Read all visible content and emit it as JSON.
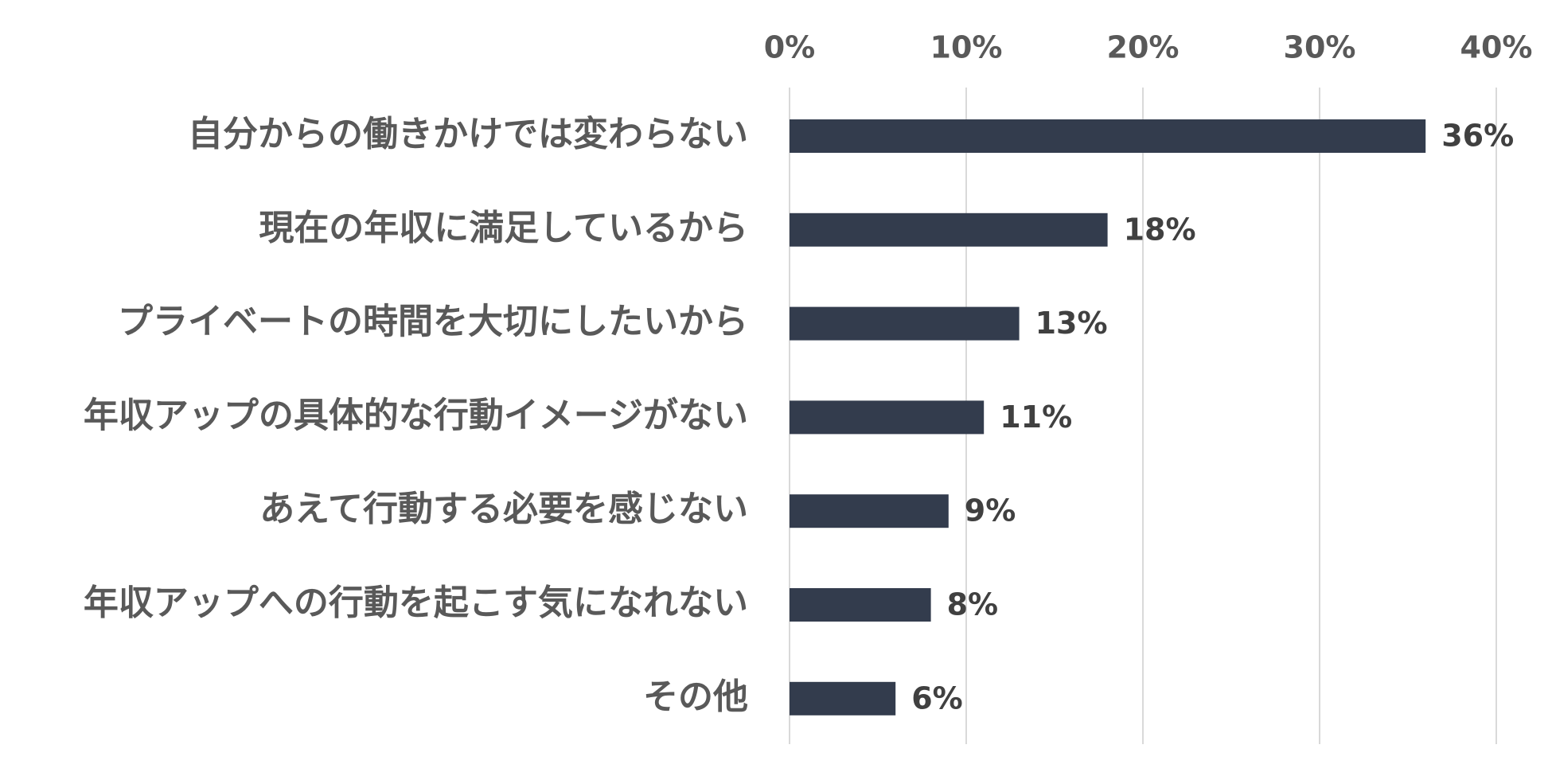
{
  "chart_data": {
    "type": "bar",
    "orientation": "horizontal",
    "categories": [
      "自分からの働きかけでは変わらない",
      "現在の年収に満足しているから",
      "プライベートの時間を大切にしたいから",
      "年収アップの具体的な行動イメージがない",
      "あえて行動する必要を感じない",
      "年収アップへの行動を起こす気になれない",
      "その他"
    ],
    "values": [
      36,
      18,
      13,
      11,
      9,
      8,
      6
    ],
    "data_labels": [
      "36%",
      "18%",
      "13%",
      "11%",
      "9%",
      "8%",
      "6%"
    ],
    "xlim": [
      0,
      40
    ],
    "ticks": [
      0,
      10,
      20,
      30,
      40
    ],
    "tick_labels": [
      "0%",
      "10%",
      "20%",
      "30%",
      "40%"
    ],
    "axis_position": "top",
    "grid": true,
    "legend": "none",
    "bar_color": "#333c4d",
    "grid_color": "#d9d9d9",
    "title": "",
    "xlabel": "",
    "ylabel": ""
  }
}
